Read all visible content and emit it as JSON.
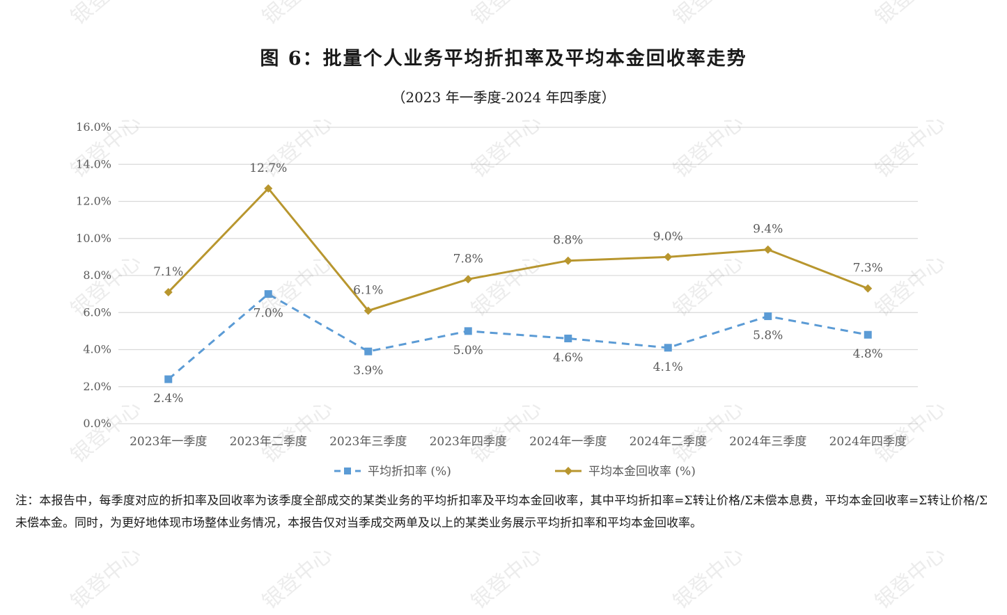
{
  "watermark": "银登中心",
  "chart_data": {
    "type": "line",
    "title": "图 6：批量个人业务平均折扣率及平均本金回收率走势",
    "subtitle": "（2023 年一季度-2024 年四季度）",
    "categories": [
      "2023年一季度",
      "2023年二季度",
      "2023年三季度",
      "2023年四季度",
      "2024年一季度",
      "2024年二季度",
      "2024年三季度",
      "2024年四季度"
    ],
    "y_ticks": [
      "0.0%",
      "2.0%",
      "4.0%",
      "6.0%",
      "8.0%",
      "10.0%",
      "12.0%",
      "14.0%",
      "16.0%"
    ],
    "ylim": [
      0,
      16
    ],
    "grid": true,
    "legend_position": "bottom",
    "series": [
      {
        "name": "平均折扣率 (%)",
        "values": [
          2.4,
          7.0,
          3.9,
          5.0,
          4.6,
          4.1,
          5.8,
          4.8
        ],
        "labels": [
          "2.4%",
          "7.0%",
          "3.9%",
          "5.0%",
          "4.6%",
          "4.1%",
          "5.8%",
          "4.8%"
        ],
        "color": "#5b9bd5",
        "marker": "square",
        "line_style": "dashed"
      },
      {
        "name": "平均本金回收率 (%)",
        "values": [
          7.1,
          12.7,
          6.1,
          7.8,
          8.8,
          9.0,
          9.4,
          7.3
        ],
        "labels": [
          "7.1%",
          "12.7%",
          "6.1%",
          "7.8%",
          "8.8%",
          "9.0%",
          "9.4%",
          "7.3%"
        ],
        "color": "#b8962e",
        "marker": "diamond",
        "line_style": "solid"
      }
    ]
  },
  "note": "注：本报告中，每季度对应的折扣率及回收率为该季度全部成交的某类业务的平均折扣率及平均本金回收率，其中平均折扣率=Σ转让价格/Σ未偿本息费，平均本金回收率=Σ转让价格/Σ未偿本金。同时，为更好地体现市场整体业务情况，本报告仅对当季成交两单及以上的某类业务展示平均折扣率和平均本金回收率。"
}
